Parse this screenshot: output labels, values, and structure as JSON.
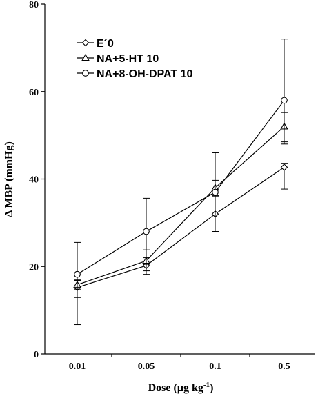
{
  "chart_data": {
    "type": "line",
    "categories": [
      "0.01",
      "0.05",
      "0.1",
      "0.5"
    ],
    "xlabel": "Dose (µg kg-1)",
    "xlabel_main": "Dose (µg kg",
    "xlabel_sup": "-1",
    "xlabel_end": ")",
    "ylabel": "Δ MBP (mmHg)",
    "ylim": [
      0,
      80
    ],
    "yticks": [
      0,
      20,
      40,
      60,
      80
    ],
    "legend_position": "top-left",
    "grid": false,
    "series": [
      {
        "name": "E´0",
        "marker": "diamond",
        "values": [
          15.2,
          20.2,
          32.0,
          42.7
        ],
        "err_low": [
          2.3,
          2.0,
          4.0,
          5.0
        ],
        "err_high": [
          1.8,
          1.8,
          4.2,
          0.9
        ]
      },
      {
        "name": "NA+5-HT 10",
        "marker": "triangle",
        "values": [
          15.8,
          21.3,
          38.0,
          52.0
        ],
        "err_low": [
          1.0,
          2.3,
          10.0,
          4.0
        ],
        "err_high": [
          1.0,
          2.5,
          1.7,
          3.2
        ]
      },
      {
        "name": "NA+8-OH-DPAT 10",
        "marker": "circle",
        "values": [
          18.2,
          28.0,
          37.0,
          58.0
        ],
        "err_low": [
          11.5,
          7.5,
          1.0,
          9.5
        ],
        "err_high": [
          7.3,
          7.6,
          9.0,
          14.0
        ]
      }
    ]
  }
}
